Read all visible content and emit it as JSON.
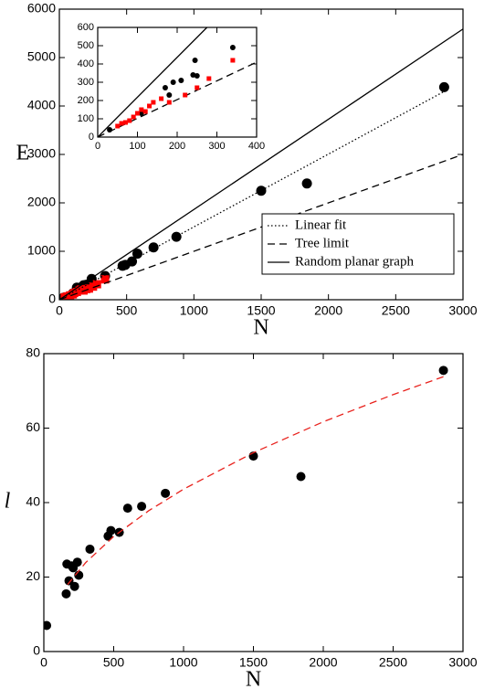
{
  "chart_data": [
    {
      "type": "scatter",
      "xlabel": "N",
      "ylabel": "E",
      "xlim": [
        0,
        3000
      ],
      "ylim": [
        0,
        6000
      ],
      "xticks": [
        0,
        500,
        1000,
        1500,
        2000,
        2500,
        3000
      ],
      "yticks": [
        0,
        1000,
        2000,
        3000,
        4000,
        5000,
        6000
      ],
      "legend": "lower right",
      "series": [
        {
          "color": "#000000",
          "marker": "circle",
          "x": [
            2860,
            1840,
            1500,
            870,
            700,
            580,
            540,
            490,
            470,
            340,
            240,
            230,
            200,
            180,
            170,
            130,
            100,
            30
          ],
          "values": [
            4390,
            2400,
            2250,
            1300,
            1080,
            950,
            790,
            720,
            700,
            490,
            430,
            340,
            310,
            300,
            270,
            250,
            130,
            40
          ]
        },
        {
          "color": "#ff0000",
          "marker": "square",
          "x": [
            40,
            60,
            80,
            100,
            110,
            130,
            150,
            160,
            180,
            200,
            220,
            250,
            280,
            340
          ],
          "values": [
            50,
            70,
            90,
            110,
            140,
            160,
            190,
            210,
            190,
            220,
            230,
            270,
            320,
            420
          ]
        },
        {
          "name": "Linear fit",
          "color": "#000000",
          "line": "dotted",
          "x": [
            0,
            2860
          ],
          "values": [
            0,
            4300
          ]
        },
        {
          "name": "Tree limit",
          "color": "#000000",
          "line": "dashed",
          "x": [
            0,
            3000
          ],
          "values": [
            0,
            3000
          ]
        },
        {
          "name": "Random planar graph",
          "color": "#000000",
          "line": "solid",
          "x": [
            0,
            3000
          ],
          "values": [
            0,
            5590
          ]
        }
      ]
    },
    {
      "type": "scatter",
      "inset": true,
      "xlim": [
        0,
        400
      ],
      "ylim": [
        0,
        600
      ],
      "xticks": [
        0,
        100,
        200,
        300,
        400
      ],
      "yticks": [
        0,
        100,
        200,
        300,
        400,
        500,
        600
      ],
      "series": [
        {
          "color": "#000000",
          "line": "solid",
          "x": [
            0,
            275
          ],
          "values": [
            0,
            600
          ]
        },
        {
          "color": "#000000",
          "line": "dashed",
          "x": [
            0,
            400
          ],
          "values": [
            0,
            410
          ]
        },
        {
          "color": "#000000",
          "marker": "circle",
          "x": [
            30,
            110,
            170,
            180,
            190,
            210,
            240,
            250,
            245,
            340
          ],
          "values": [
            40,
            130,
            270,
            230,
            300,
            310,
            340,
            335,
            420,
            490
          ]
        },
        {
          "color": "#ff0000",
          "marker": "square",
          "x": [
            50,
            60,
            70,
            80,
            90,
            100,
            110,
            120,
            130,
            140,
            160,
            180,
            220,
            250,
            280,
            340
          ],
          "values": [
            60,
            75,
            80,
            90,
            110,
            130,
            150,
            140,
            170,
            190,
            210,
            190,
            230,
            270,
            320,
            420
          ]
        }
      ]
    },
    {
      "type": "scatter",
      "xlabel": "N",
      "ylabel": "l",
      "ylabel_style": "italic",
      "xlim": [
        0,
        3000
      ],
      "ylim": [
        0,
        80
      ],
      "xticks": [
        0,
        500,
        1000,
        1500,
        2000,
        2500,
        3000
      ],
      "yticks": [
        0,
        20,
        40,
        60,
        80
      ],
      "series": [
        {
          "color": "#000000",
          "marker": "circle",
          "x": [
            20,
            160,
            165,
            180,
            200,
            210,
            220,
            240,
            250,
            330,
            460,
            480,
            540,
            600,
            700,
            870,
            1500,
            1840,
            2860
          ],
          "values": [
            7,
            15.5,
            23.5,
            19,
            23,
            22.5,
            17.5,
            24,
            20.5,
            27.5,
            31,
            32.5,
            32,
            38.5,
            39,
            42.5,
            52.5,
            47,
            75.5
          ]
        },
        {
          "color": "#e8211c",
          "line": "dashed",
          "x": [
            170,
            300,
            500,
            750,
            1000,
            1500,
            2000,
            2500,
            2860
          ],
          "values": [
            18,
            23.9,
            30.9,
            37.8,
            43.6,
            53.4,
            61.7,
            69,
            73.8
          ]
        }
      ]
    }
  ]
}
